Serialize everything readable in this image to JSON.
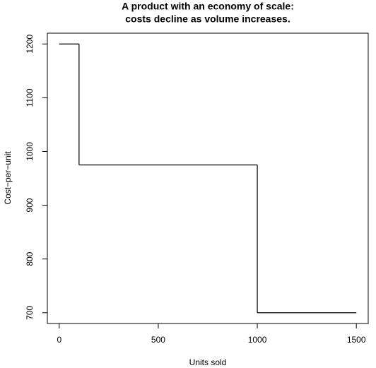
{
  "chart_data": {
    "type": "step",
    "title": [
      "A product with an economy of scale:",
      "costs decline as volume increases."
    ],
    "xlabel": "Units sold",
    "ylabel": "Cost−per−unit",
    "x": [
      0,
      100,
      1000,
      1500
    ],
    "values": [
      1200,
      975,
      700,
      700
    ],
    "color": "#000000",
    "xlim": [
      -60,
      1560
    ],
    "ylim": [
      680,
      1220
    ],
    "xticks": [
      0,
      500,
      1000,
      1500
    ],
    "yticks": [
      700,
      800,
      900,
      1000,
      1100,
      1200
    ]
  }
}
